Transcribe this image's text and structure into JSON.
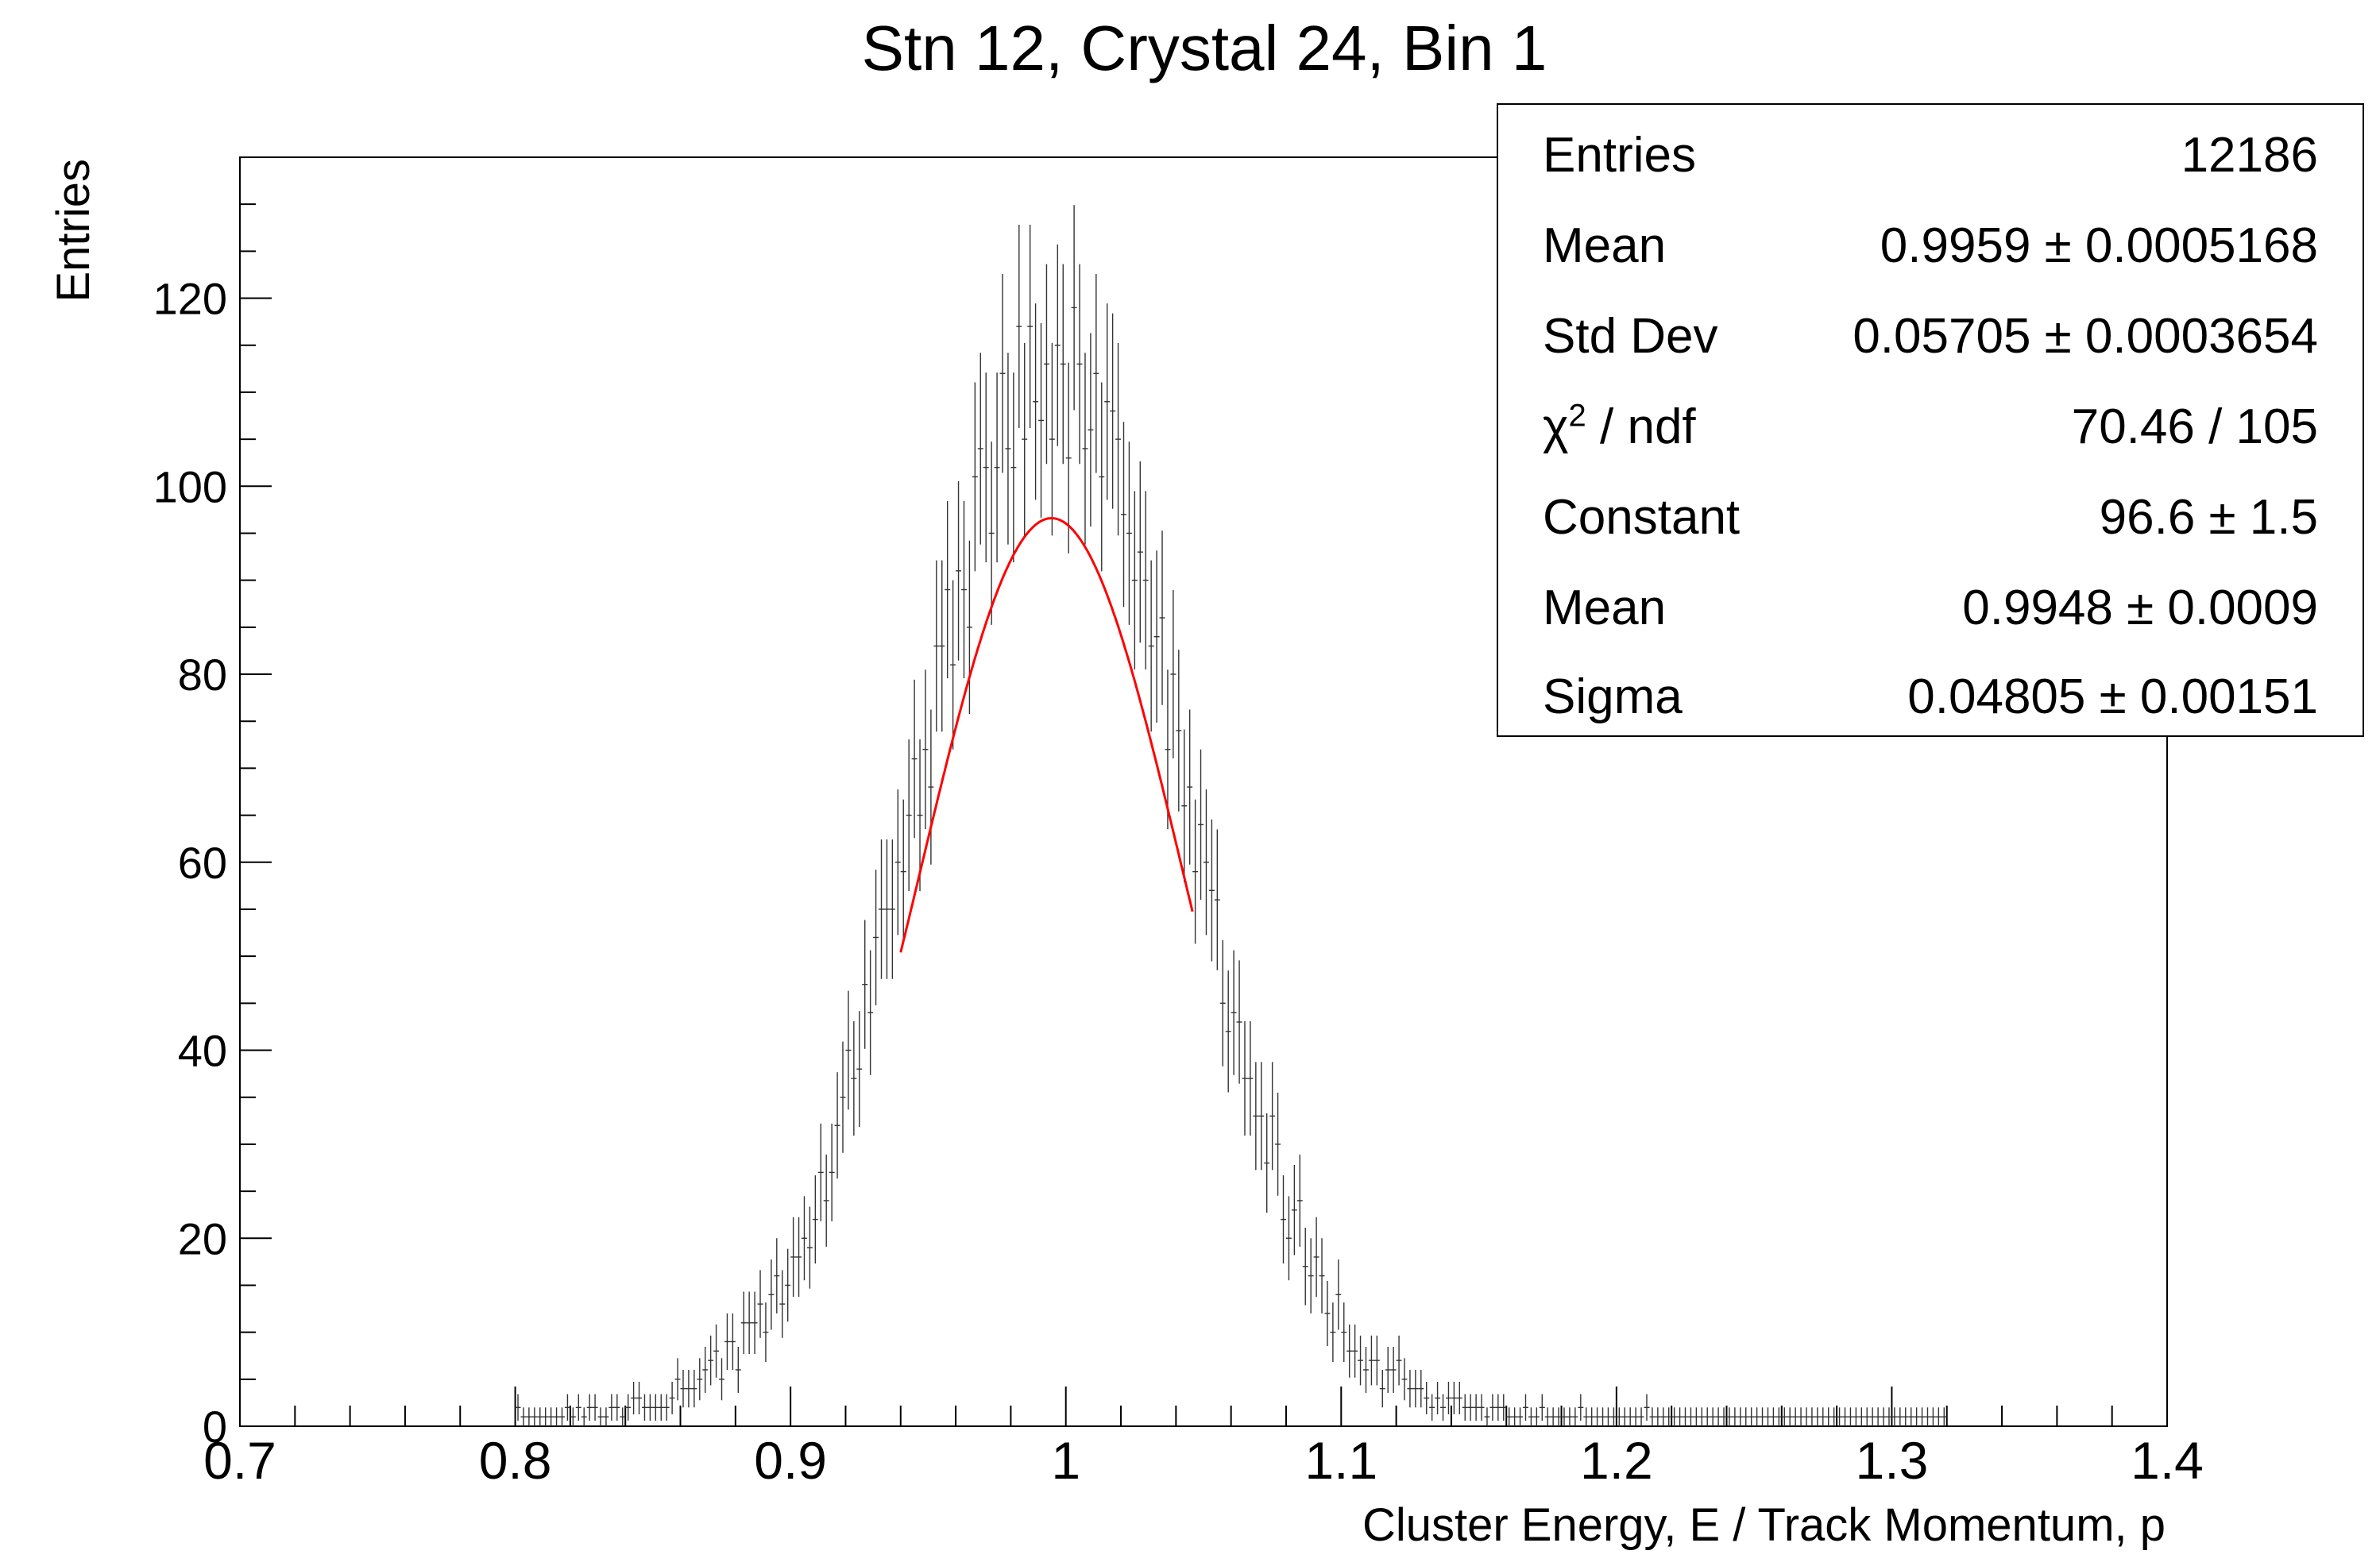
{
  "chart_data": {
    "type": "histogram",
    "title": "Stn 12, Crystal 24, Bin 1",
    "xlabel": "Cluster Energy, E / Track Momentum, p",
    "ylabel": "Entries",
    "xlim": [
      0.7,
      1.4
    ],
    "ylim": [
      0,
      135
    ],
    "x_ticks": [
      "0.7",
      "0.8",
      "0.9",
      "1",
      "1.1",
      "1.2",
      "1.3",
      "1.4"
    ],
    "y_ticks": [
      "0",
      "20",
      "40",
      "60",
      "80",
      "100",
      "120"
    ],
    "bin_width": 0.002,
    "series": [
      {
        "histogram": {
          "entries": 12186,
          "mean": 0.9959,
          "std_dev": 0.05705,
          "data_range": [
            0.8,
            1.32
          ],
          "peak_approx": 108
        }
      },
      {
        "name": "gaus",
        "fit_range": [
          0.94,
          1.046
        ],
        "constant": 96.6,
        "mean": 0.9948,
        "sigma": 0.04805,
        "color": "#ff0000"
      }
    ],
    "grid": false
  },
  "stats": {
    "rows": [
      {
        "label": "Entries",
        "value": "12186"
      },
      {
        "label": "Mean",
        "value": "0.9959 ± 0.0005168"
      },
      {
        "label": "Std Dev",
        "value": "0.05705 ± 0.0003654"
      },
      {
        "label_main": "χ",
        "label_sup": "2",
        "label_rest": " / ndf",
        "value": "70.46 / 105"
      },
      {
        "label": "Constant",
        "value": "96.6 ± 1.5"
      },
      {
        "label": "Mean",
        "value": "0.9948 ± 0.0009"
      },
      {
        "label": "Sigma",
        "value": "0.04805 ± 0.00151"
      }
    ]
  }
}
